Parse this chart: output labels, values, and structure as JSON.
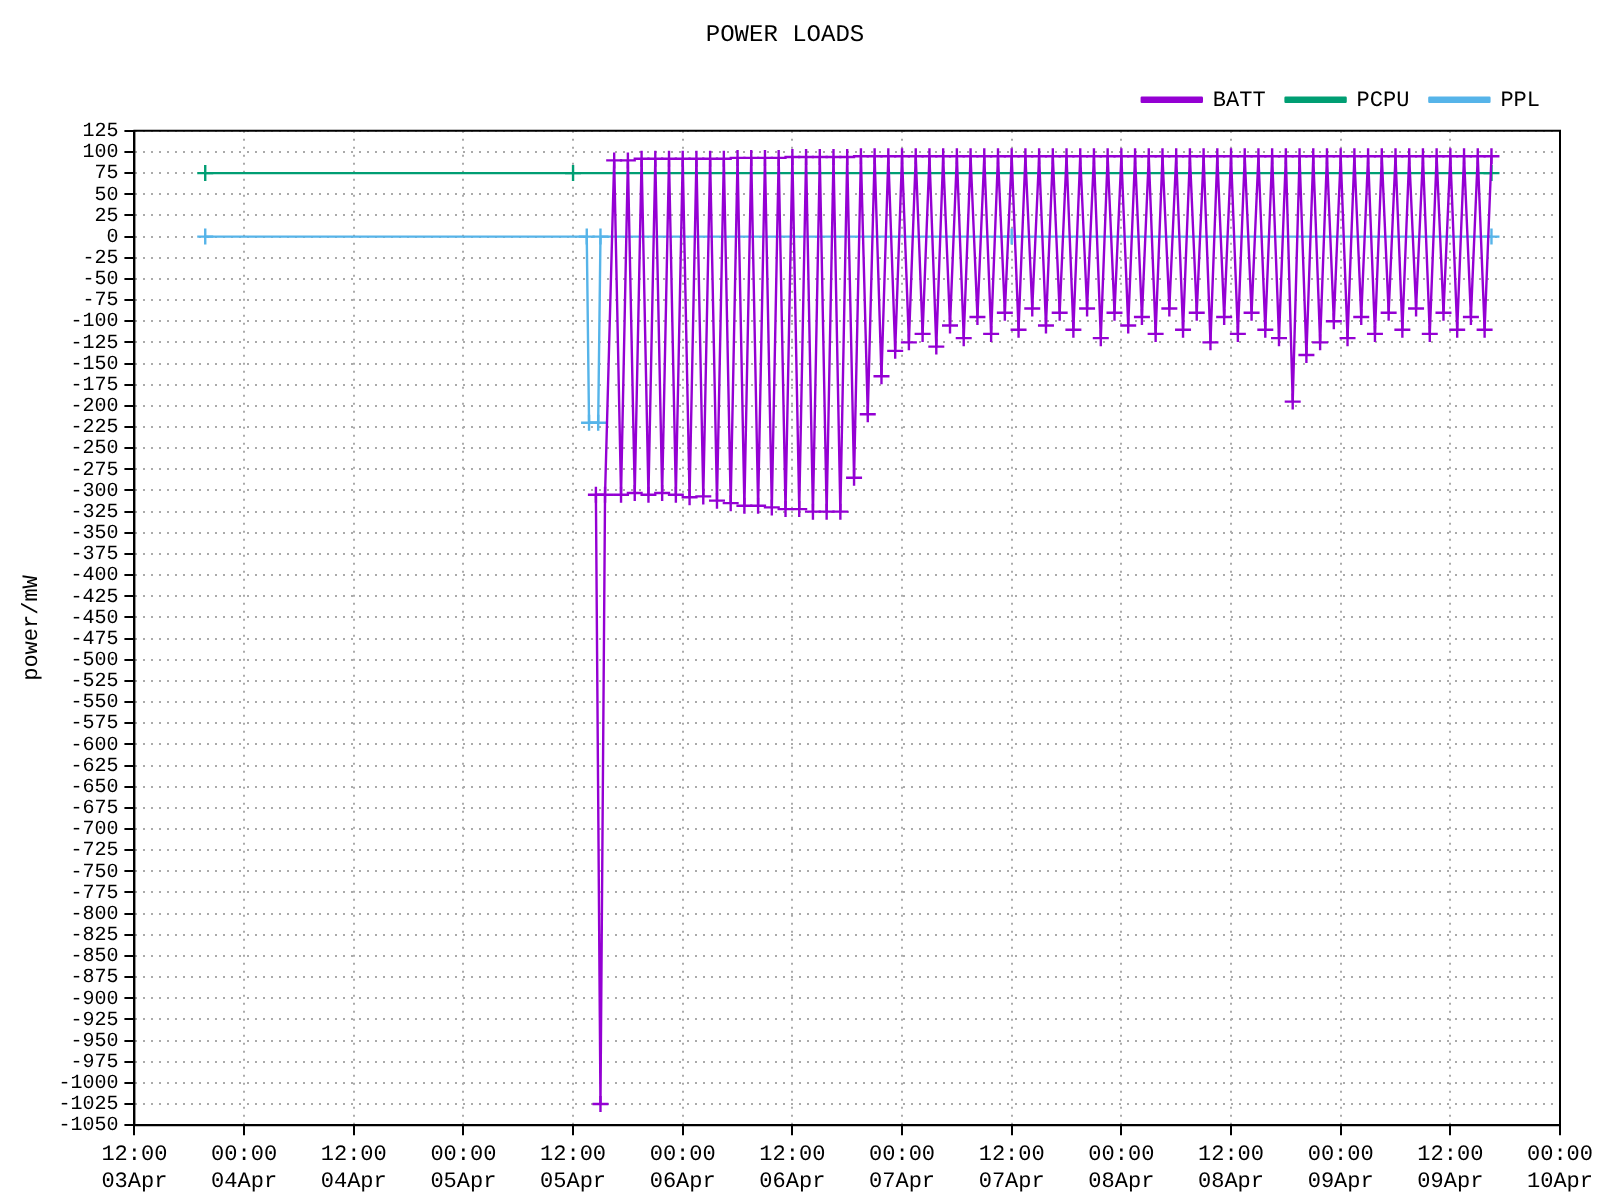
{
  "chart_data": {
    "type": "line",
    "title": "POWER LOADS",
    "ylabel": "power/mW",
    "xlim": [
      "--04-03T12:00",
      "--04-10T00:00"
    ],
    "xticks": [
      {
        "value": "--04-03T12:00",
        "label": "12:00\n03Apr"
      },
      {
        "value": "--04-04T00:00",
        "label": "00:00\n04Apr"
      },
      {
        "value": "--04-04T12:00",
        "label": "12:00\n04Apr"
      },
      {
        "value": "--04-05T00:00",
        "label": "00:00\n05Apr"
      },
      {
        "value": "--04-05T12:00",
        "label": "12:00\n05Apr"
      },
      {
        "value": "--04-06T00:00",
        "label": "00:00\n06Apr"
      },
      {
        "value": "--04-06T12:00",
        "label": "12:00\n06Apr"
      },
      {
        "value": "--04-07T00:00",
        "label": "00:00\n07Apr"
      },
      {
        "value": "--04-07T12:00",
        "label": "12:00\n07Apr"
      },
      {
        "value": "--04-08T00:00",
        "label": "00:00\n08Apr"
      },
      {
        "value": "--04-08T12:00",
        "label": "12:00\n08Apr"
      },
      {
        "value": "--04-09T00:00",
        "label": "00:00\n09Apr"
      },
      {
        "value": "--04-09T12:00",
        "label": "12:00\n09Apr"
      },
      {
        "value": "--04-10T00:00",
        "label": "00:00\n10Apr"
      }
    ],
    "ylim": [
      -1050,
      125
    ],
    "yticks": [
      125,
      100,
      75,
      50,
      25,
      0,
      -25,
      -50,
      -75,
      -100,
      -125,
      -150,
      -175,
      -200,
      -225,
      -250,
      -275,
      -300,
      -325,
      -350,
      -375,
      -400,
      -425,
      -450,
      -475,
      -500,
      -525,
      -550,
      -575,
      -600,
      -625,
      -650,
      -675,
      -700,
      -725,
      -750,
      -775,
      -800,
      -825,
      -850,
      -875,
      -900,
      -925,
      -950,
      -975,
      -1000,
      -1025,
      -1050
    ],
    "grid": true,
    "legend": "top right",
    "series": [
      {
        "name": "BATT",
        "color": "#9400d3",
        "marker": "cross",
        "x": [
          "--04-05T14:30",
          "--04-05T15:00",
          "--04-05T15:30",
          "--04-05T16:30",
          "--04-05T17:15",
          "--04-05T18:00",
          "--04-05T18:45",
          "--04-05T19:30",
          "--04-05T20:15",
          "--04-05T21:00",
          "--04-05T21:45",
          "--04-05T22:30",
          "--04-05T23:15",
          "--04-06T00:00",
          "--04-06T00:45",
          "--04-06T01:30",
          "--04-06T02:15",
          "--04-06T03:00",
          "--04-06T03:45",
          "--04-06T04:30",
          "--04-06T05:15",
          "--04-06T06:00",
          "--04-06T06:45",
          "--04-06T07:30",
          "--04-06T08:15",
          "--04-06T09:00",
          "--04-06T09:45",
          "--04-06T10:30",
          "--04-06T11:15",
          "--04-06T12:00",
          "--04-06T12:45",
          "--04-06T13:30",
          "--04-06T14:15",
          "--04-06T15:00",
          "--04-06T15:45",
          "--04-06T16:30",
          "--04-06T17:15",
          "--04-06T18:00",
          "--04-06T18:45",
          "--04-06T19:30",
          "--04-06T20:15",
          "--04-06T21:00",
          "--04-06T21:45",
          "--04-06T22:30",
          "--04-06T23:15",
          "--04-07T00:00",
          "--04-07T00:45",
          "--04-07T01:30",
          "--04-07T02:15",
          "--04-07T03:00",
          "--04-07T03:45",
          "--04-07T04:30",
          "--04-07T05:15",
          "--04-07T06:00",
          "--04-07T06:45",
          "--04-07T07:30",
          "--04-07T08:15",
          "--04-07T09:00",
          "--04-07T09:45",
          "--04-07T10:30",
          "--04-07T11:15",
          "--04-07T12:00",
          "--04-07T12:45",
          "--04-07T13:30",
          "--04-07T14:15",
          "--04-07T15:00",
          "--04-07T15:45",
          "--04-07T16:30",
          "--04-07T17:15",
          "--04-07T18:00",
          "--04-07T18:45",
          "--04-07T19:30",
          "--04-07T20:15",
          "--04-07T21:00",
          "--04-07T21:45",
          "--04-07T22:30",
          "--04-07T23:15",
          "--04-08T00:00",
          "--04-08T00:45",
          "--04-08T01:30",
          "--04-08T02:15",
          "--04-08T03:00",
          "--04-08T03:45",
          "--04-08T04:30",
          "--04-08T05:15",
          "--04-08T06:00",
          "--04-08T06:45",
          "--04-08T07:30",
          "--04-08T08:15",
          "--04-08T09:00",
          "--04-08T09:45",
          "--04-08T10:30",
          "--04-08T11:15",
          "--04-08T12:00",
          "--04-08T12:45",
          "--04-08T13:30",
          "--04-08T14:15",
          "--04-08T15:00",
          "--04-08T15:45",
          "--04-08T16:30",
          "--04-08T17:15",
          "--04-08T18:00",
          "--04-08T18:45",
          "--04-08T19:30",
          "--04-08T20:15",
          "--04-08T21:00",
          "--04-08T21:45",
          "--04-08T22:30",
          "--04-08T23:15",
          "--04-09T00:00",
          "--04-09T00:45",
          "--04-09T01:30",
          "--04-09T02:15",
          "--04-09T03:00",
          "--04-09T03:45",
          "--04-09T04:30",
          "--04-09T05:15",
          "--04-09T06:00",
          "--04-09T06:45",
          "--04-09T07:30",
          "--04-09T08:15",
          "--04-09T09:00",
          "--04-09T09:45",
          "--04-09T10:30",
          "--04-09T11:15",
          "--04-09T12:00",
          "--04-09T12:45",
          "--04-09T13:30",
          "--04-09T14:15",
          "--04-09T15:00",
          "--04-09T15:45",
          "--04-09T16:30"
        ],
        "values": [
          -305,
          -1025,
          -305,
          90,
          -305,
          90,
          -303,
          92,
          -305,
          92,
          -303,
          92,
          -305,
          92,
          -308,
          92,
          -307,
          92,
          -312,
          92,
          -315,
          93,
          -318,
          93,
          -318,
          93,
          -320,
          93,
          -322,
          94,
          -322,
          94,
          -325,
          94,
          -325,
          94,
          -325,
          94,
          -285,
          95,
          -210,
          95,
          -165,
          95,
          -135,
          95,
          -125,
          95,
          -115,
          95,
          -130,
          95,
          -105,
          95,
          -120,
          95,
          -95,
          95,
          -115,
          95,
          -90,
          95,
          -110,
          95,
          -85,
          95,
          -105,
          95,
          -90,
          95,
          -110,
          95,
          -85,
          95,
          -120,
          95,
          -90,
          95,
          -105,
          95,
          -95,
          95,
          -115,
          95,
          -85,
          95,
          -110,
          95,
          -90,
          95,
          -125,
          95,
          -95,
          95,
          -115,
          95,
          -90,
          95,
          -110,
          95,
          -120,
          95,
          -195,
          95,
          -140,
          95,
          -125,
          95,
          -100,
          95,
          -120,
          95,
          -95,
          95,
          -115,
          95,
          -90,
          95,
          -110,
          95,
          -85,
          95,
          -115,
          95,
          -90,
          95,
          -110,
          95,
          -95,
          95,
          -110,
          95
        ]
      },
      {
        "name": "PCPU",
        "color": "#009e73",
        "marker": "cross",
        "x": [
          "--04-03T19:45",
          "--04-05T12:00",
          "--04-09T16:30"
        ],
        "values": [
          75,
          75,
          75
        ]
      },
      {
        "name": "PPL",
        "color": "#56b4e9",
        "marker": "cross",
        "x": [
          "--04-03T19:45",
          "--04-05T13:30",
          "--04-05T13:45",
          "--04-05T14:45",
          "--04-05T15:00",
          "--04-07T12:00",
          "--04-09T16:30"
        ],
        "values": [
          0,
          0,
          -220,
          -220,
          0,
          0,
          0
        ]
      }
    ]
  }
}
